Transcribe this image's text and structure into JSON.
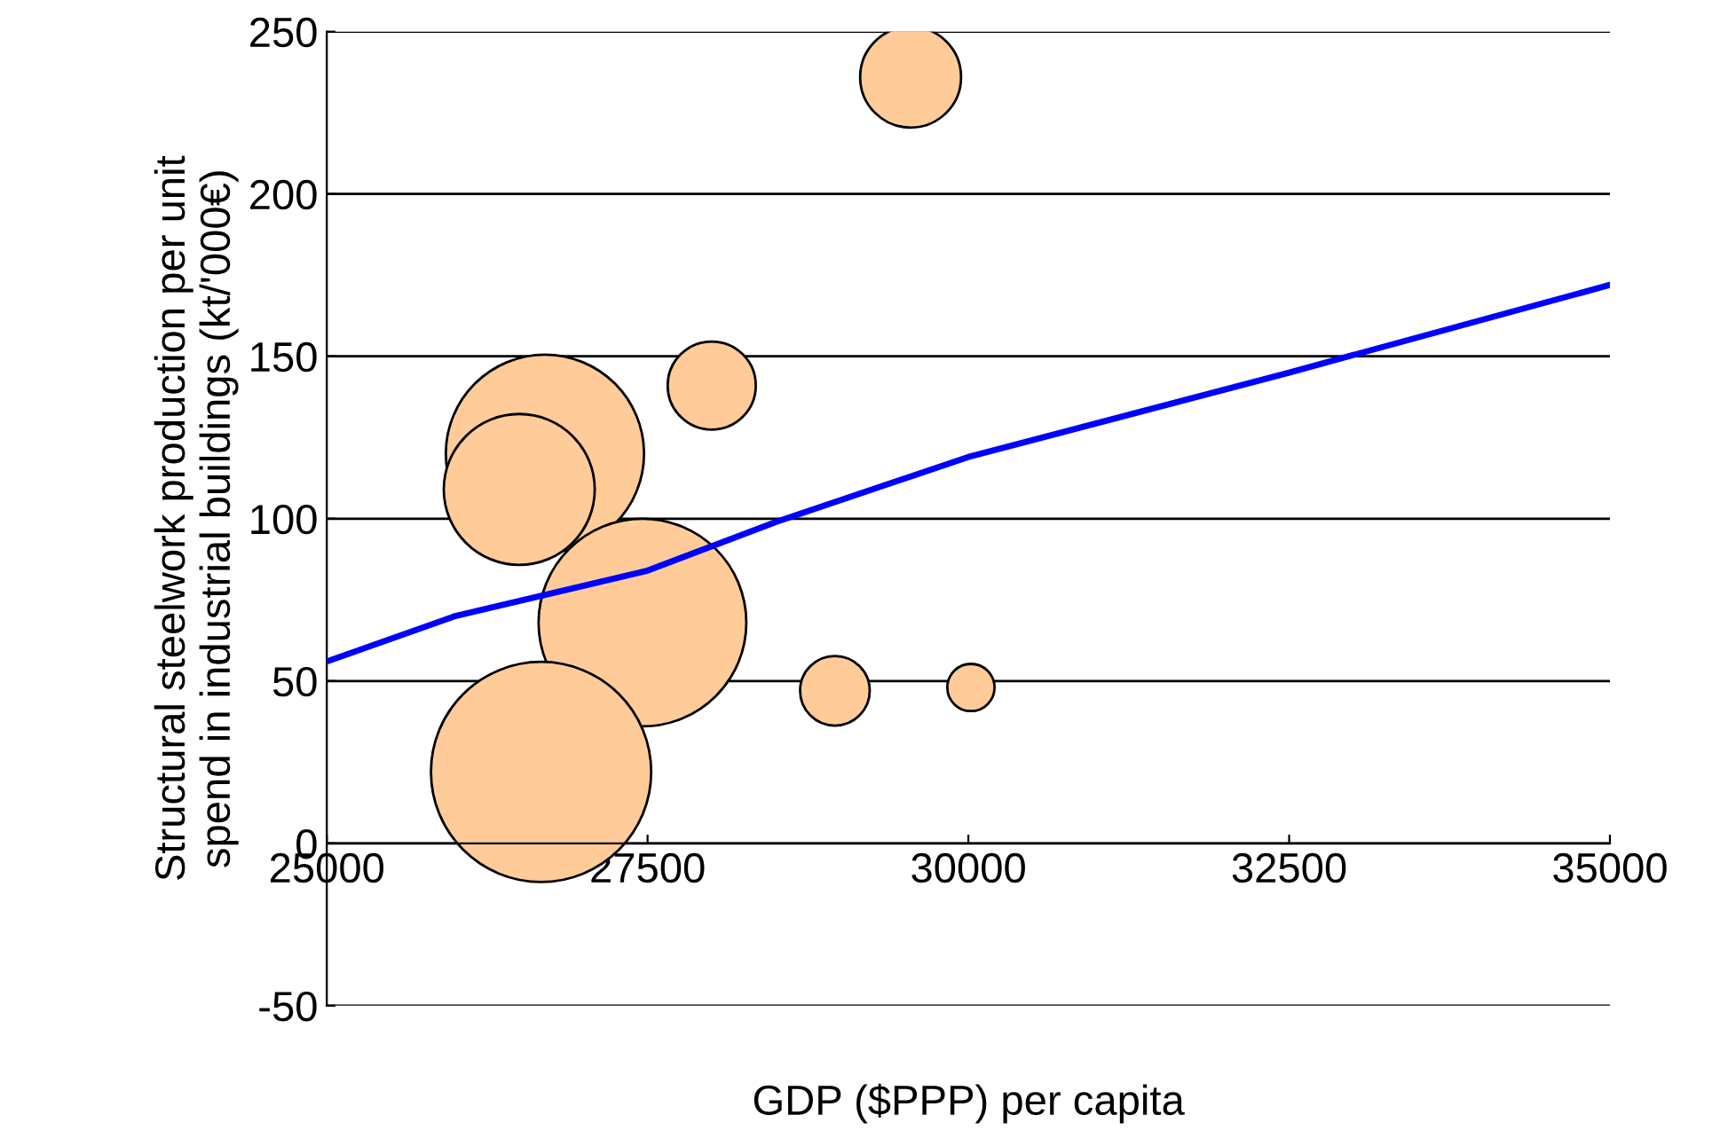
{
  "chart_data": {
    "type": "bubble",
    "xlabel": "GDP ($PPP) per capita",
    "ylabel": "Structural steelwork production per unit\nspend in industrial buildings (kt/'000€)",
    "xlim": [
      25000,
      35000
    ],
    "xticks": [
      25000,
      27500,
      30000,
      32500,
      35000
    ],
    "ylim": [
      -50,
      250
    ],
    "yticks": [
      -50,
      0,
      50,
      100,
      150,
      200,
      250
    ],
    "grid": "y",
    "legend": false,
    "series": [
      {
        "color": "#ffcc99",
        "x": [
          29550,
          28000,
          26700,
          26500,
          27460,
          26670,
          28960,
          30020
        ],
        "values": [
          236,
          141,
          120,
          109,
          68,
          22,
          47,
          48
        ],
        "sizes": [
          0.21,
          0.16,
          0.81,
          0.47,
          0.89,
          1,
          0.1,
          0.046
        ]
      },
      {
        "type": "line",
        "color": "#0000ff",
        "marker": "none",
        "line_style": "solid",
        "x": [
          25000,
          26000,
          27500,
          28500,
          30000,
          32500,
          35000
        ],
        "values": [
          56,
          70,
          84,
          99,
          119,
          145,
          172
        ]
      }
    ]
  }
}
